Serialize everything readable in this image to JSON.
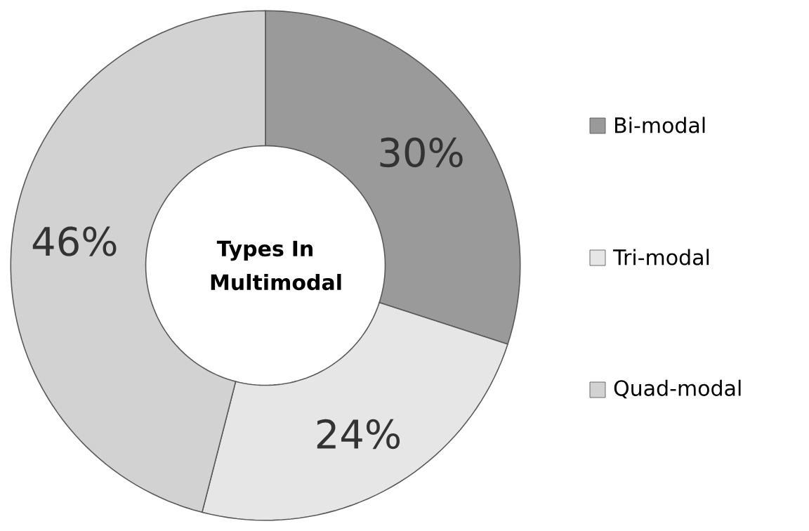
{
  "chart_data": {
    "type": "donut",
    "title": "Types In Multimodal",
    "categories": [
      "Bi-modal",
      "Tri-modal",
      "Quad-modal"
    ],
    "values": [
      30,
      24,
      46
    ],
    "colors": [
      "#9a9a9a",
      "#e6e6e6",
      "#d2d2d2"
    ],
    "value_labels": [
      "30%",
      "24%",
      "46%"
    ],
    "legend": "right"
  }
}
